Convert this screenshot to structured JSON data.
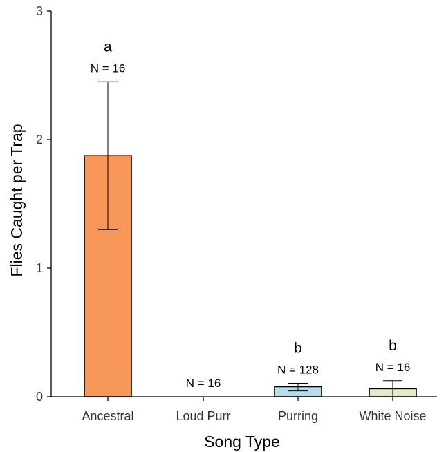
{
  "chart_data": {
    "type": "bar",
    "xlabel": "Song Type",
    "ylabel": "Flies Caught per Trap",
    "ylim": [
      0,
      3
    ],
    "yticks": [
      "0",
      "1",
      "2",
      "3"
    ],
    "categories": [
      "Ancestral",
      "Loud Purr",
      "Purring",
      "White Noise"
    ],
    "values": [
      1.875,
      0,
      0.078,
      0.0625
    ],
    "error_low": [
      1.3,
      0,
      0.045,
      0.0
    ],
    "error_high": [
      2.45,
      0,
      0.105,
      0.125
    ],
    "n_labels": [
      "N = 16",
      "N = 16",
      "N = 128",
      "N = 16"
    ],
    "sig_letters": [
      "a",
      "",
      "b",
      "b"
    ],
    "colors": [
      "#f7975a",
      "#f7975a",
      "#b9dcec",
      "#e3ebc8"
    ],
    "grid": false,
    "legend": "none"
  }
}
